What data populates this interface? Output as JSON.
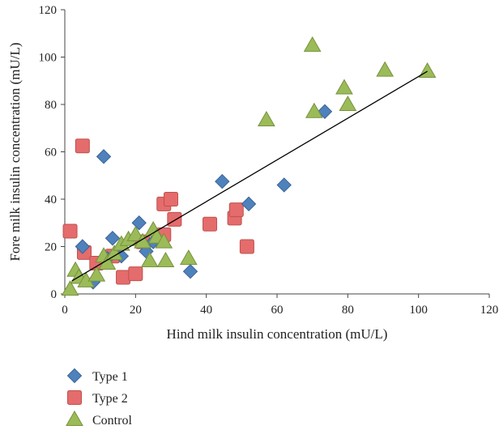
{
  "chart_data": {
    "type": "scatter",
    "xlabel": "Hind milk insulin concentration (mU/L)",
    "ylabel": "Fore milk insulin concentration (mU/L)",
    "xlim": [
      0,
      120
    ],
    "ylim": [
      0,
      120
    ],
    "xticks": [
      0,
      20,
      40,
      60,
      80,
      100,
      120
    ],
    "yticks": [
      0,
      20,
      40,
      60,
      80,
      100,
      120
    ],
    "grid": false,
    "legend_position": "bottom-left",
    "series": [
      {
        "name": "Type 1",
        "marker": "diamond",
        "color": "#4F81BD",
        "points": [
          [
            11,
            58
          ],
          [
            5,
            20
          ],
          [
            8,
            5
          ],
          [
            12,
            15
          ],
          [
            13.5,
            23.5
          ],
          [
            16,
            16
          ],
          [
            21,
            30
          ],
          [
            23,
            18
          ],
          [
            25,
            22
          ],
          [
            35.5,
            9.5
          ],
          [
            44.5,
            47.5
          ],
          [
            52,
            38
          ],
          [
            62,
            46
          ],
          [
            73.5,
            77
          ]
        ]
      },
      {
        "name": "Type 2",
        "marker": "square",
        "color": "#E46C6C",
        "points": [
          [
            1.5,
            26.5
          ],
          [
            5,
            62.5
          ],
          [
            5.5,
            17.5
          ],
          [
            9,
            13
          ],
          [
            13.5,
            16
          ],
          [
            16.5,
            7
          ],
          [
            20,
            8.5
          ],
          [
            22,
            22
          ],
          [
            28,
            38
          ],
          [
            28,
            25
          ],
          [
            30,
            40
          ],
          [
            31,
            31.5
          ],
          [
            41,
            29.5
          ],
          [
            48,
            32
          ],
          [
            48.5,
            35.5
          ],
          [
            51.5,
            20
          ]
        ]
      },
      {
        "name": "Control",
        "marker": "triangle",
        "color": "#9BBB59",
        "points": [
          [
            1.5,
            2
          ],
          [
            3,
            10
          ],
          [
            4,
            7
          ],
          [
            6,
            5.5
          ],
          [
            9,
            8
          ],
          [
            11,
            16
          ],
          [
            12,
            13
          ],
          [
            14,
            17
          ],
          [
            16,
            21
          ],
          [
            18,
            23
          ],
          [
            20,
            25
          ],
          [
            22,
            22
          ],
          [
            24,
            14
          ],
          [
            25,
            27
          ],
          [
            26,
            24
          ],
          [
            28,
            22
          ],
          [
            28.5,
            14
          ],
          [
            35,
            15
          ],
          [
            57,
            73.5
          ],
          [
            70,
            105
          ],
          [
            70.5,
            77
          ],
          [
            79,
            87
          ],
          [
            80,
            80
          ],
          [
            90.5,
            94.5
          ],
          [
            102.5,
            94
          ]
        ]
      }
    ],
    "trendline": {
      "from": [
        2,
        5.5
      ],
      "to": [
        102.5,
        94
      ],
      "color": "#000000"
    }
  }
}
